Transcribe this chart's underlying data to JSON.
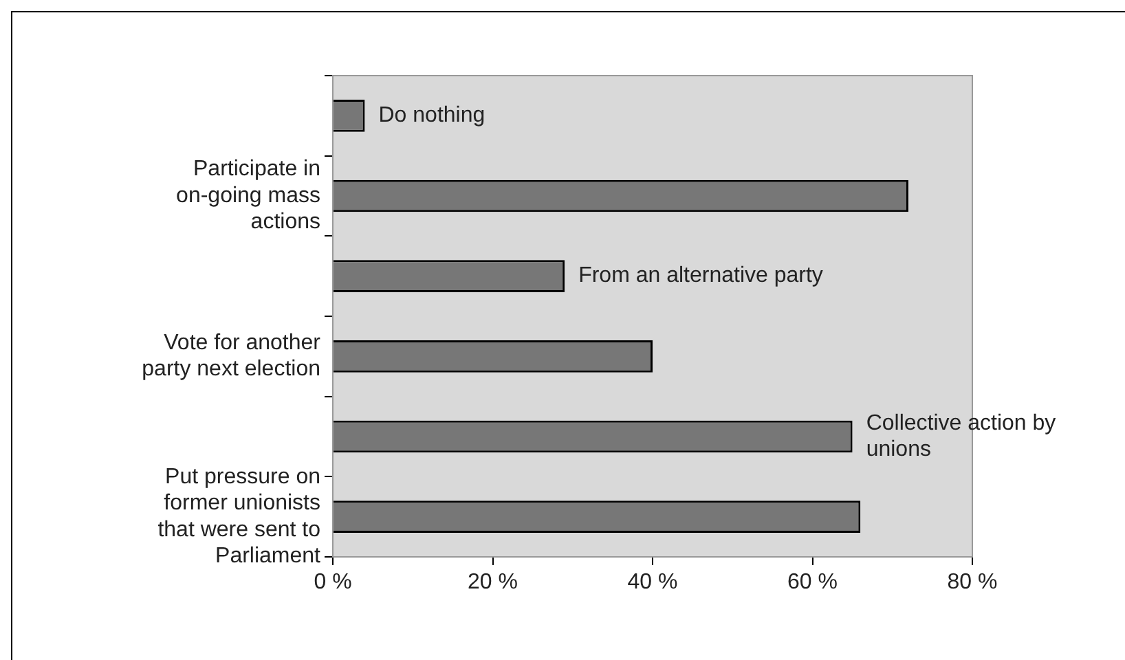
{
  "chart_data": {
    "type": "bar",
    "orientation": "horizontal",
    "categories": [
      "Do nothing",
      "Participate in on-going mass actions",
      "From an alternative party",
      "Vote for another party next election",
      "Collective action by unions",
      "Put pressure on former unionists that were sent to Parliament"
    ],
    "values": [
      4,
      72,
      29,
      40,
      65,
      66
    ],
    "color": "#777777",
    "xlim": [
      0,
      80
    ],
    "xticks": [
      {
        "value": 0,
        "label": "0 %"
      },
      {
        "value": 20,
        "label": "20 %"
      },
      {
        "value": 40,
        "label": "40 %"
      },
      {
        "value": 60,
        "label": "60 %"
      },
      {
        "value": 80,
        "label": "80 %"
      }
    ],
    "legend": false
  }
}
